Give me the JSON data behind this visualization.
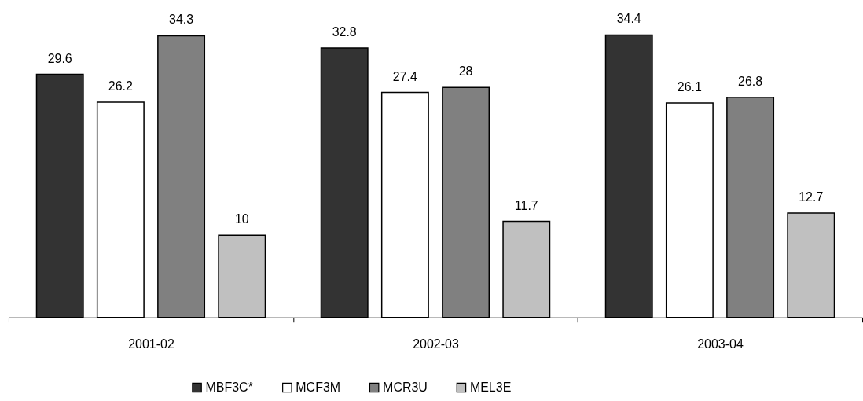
{
  "chart_data": {
    "type": "bar",
    "categories": [
      "2001-02",
      "2002-03",
      "2003-04"
    ],
    "series": [
      {
        "name": "MBF3C*",
        "color": "#333333",
        "values": [
          29.6,
          32.8,
          34.4
        ]
      },
      {
        "name": "MCF3M",
        "color": "#ffffff",
        "values": [
          26.2,
          27.4,
          26.1
        ]
      },
      {
        "name": "MCR3U",
        "color": "#808080",
        "values": [
          34.3,
          28,
          26.8
        ]
      },
      {
        "name": "MEL3E",
        "color": "#c0c0c0",
        "values": [
          10,
          11.7,
          12.7
        ]
      }
    ],
    "data_labels": true,
    "legend": "bottom",
    "grid": false,
    "tick_labels": "x"
  }
}
